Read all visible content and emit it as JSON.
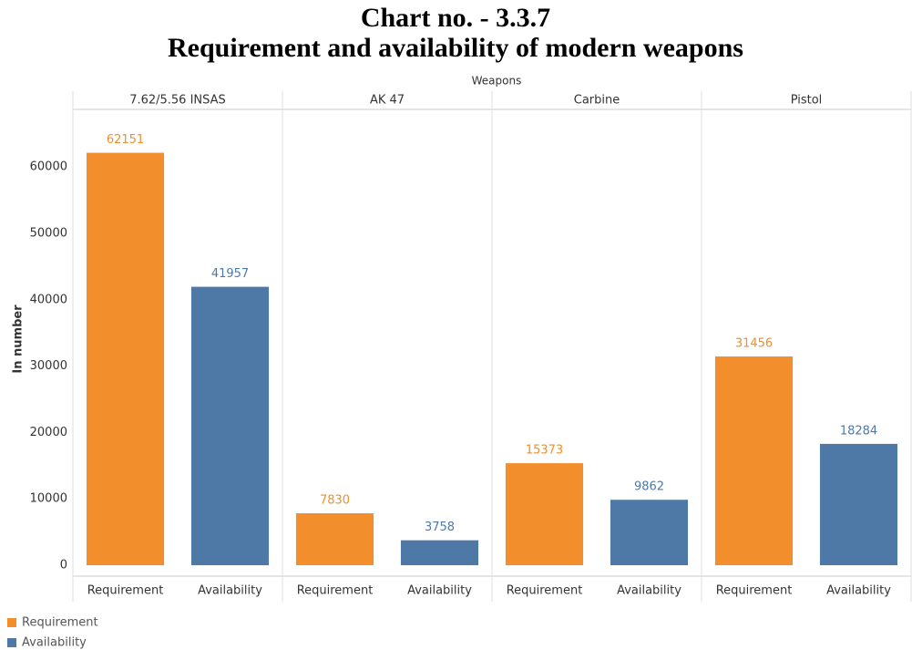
{
  "chart_data": {
    "type": "bar",
    "title": "Chart no. - 3.3.7",
    "subtitle": "Requirement and availability of modern weapons",
    "column_label": "Weapons",
    "y_label": "In number",
    "categories": [
      "7.62/5.56 INSAS",
      "AK 47",
      "Carbine",
      "Pistol"
    ],
    "series": [
      {
        "name": "Requirement",
        "color": "#f28e2b",
        "values": [
          62151,
          7830,
          15373,
          31456
        ]
      },
      {
        "name": "Availability",
        "color": "#4e79a7",
        "values": [
          41957,
          3758,
          9862,
          18284
        ]
      }
    ],
    "ylim": [
      0,
      68000
    ],
    "yticks": [
      0,
      10000,
      20000,
      30000,
      40000,
      50000,
      60000
    ],
    "grid": false,
    "legend": "bottom-left"
  }
}
